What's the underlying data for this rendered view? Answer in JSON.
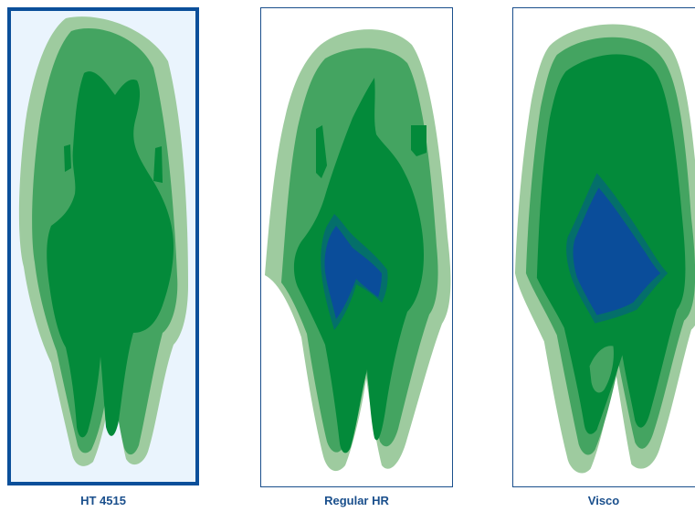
{
  "panels": [
    {
      "label": "HT 4515",
      "max_level": 3
    },
    {
      "label": "Regular HR",
      "max_level": 5
    },
    {
      "label": "Visco",
      "max_level": 5
    }
  ],
  "legend_colors": {
    "level_1": "#9ecb9f",
    "level_2": "#44a461",
    "level_3": "#038a3a",
    "level_4": "#046f6a",
    "level_5": "#0a4d9a"
  },
  "panel_colors": {
    "highlight_border": "#0b4f9a",
    "highlight_background": "#eaf4fd",
    "frame_border": "#1a4f8c"
  }
}
